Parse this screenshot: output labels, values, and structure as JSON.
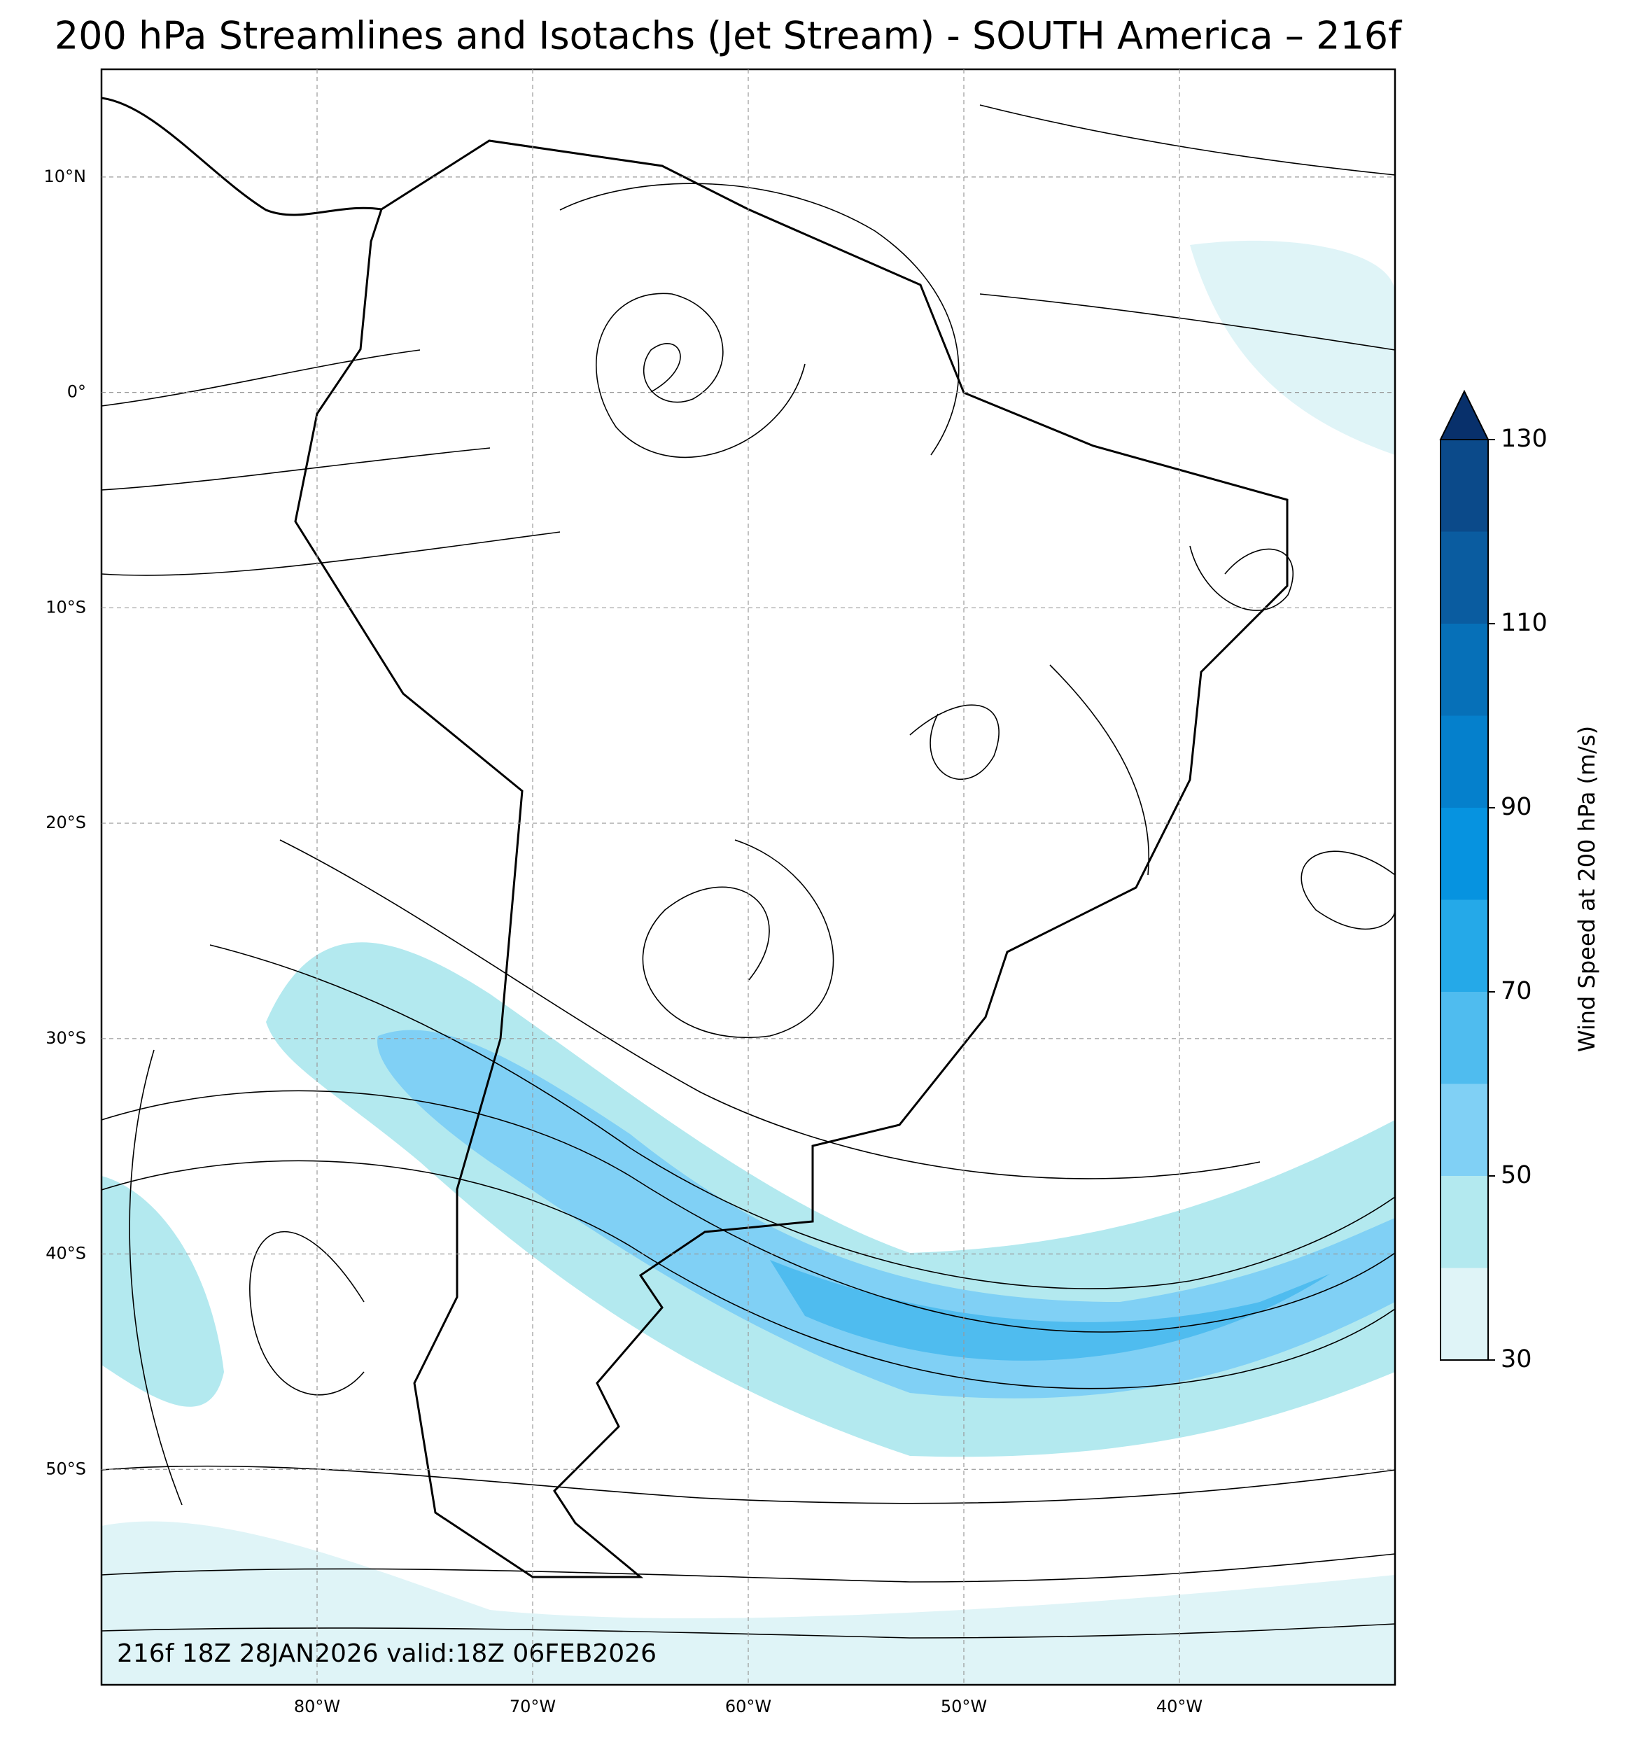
{
  "chart_data": {
    "type": "map",
    "title": "200 hPa Streamlines and Isotachs (Jet Stream) - SOUTH America – 216f",
    "footer": "216f 18Z 28JAN2026 valid:18Z 06FEB2026",
    "xlim": [
      -90,
      -30
    ],
    "ylim": [
      -60,
      15
    ],
    "xticks": [
      {
        "value": -80,
        "label": "80°W"
      },
      {
        "value": -70,
        "label": "70°W"
      },
      {
        "value": -60,
        "label": "60°W"
      },
      {
        "value": -50,
        "label": "50°W"
      },
      {
        "value": -40,
        "label": "40°W"
      }
    ],
    "yticks": [
      {
        "value": 10,
        "label": "10°N"
      },
      {
        "value": 0,
        "label": "0°"
      },
      {
        "value": -10,
        "label": "10°S"
      },
      {
        "value": -20,
        "label": "20°S"
      },
      {
        "value": -30,
        "label": "30°S"
      },
      {
        "value": -40,
        "label": "40°S"
      },
      {
        "value": -50,
        "label": "50°S"
      }
    ],
    "grid": true,
    "colorbar": {
      "label": "Wind Speed at 200 hPa (m/s)",
      "levels": [
        30,
        40,
        50,
        60,
        70,
        80,
        90,
        100,
        110,
        120,
        130
      ],
      "colors": [
        "#dff4f7",
        "#b3e9ef",
        "#80d0f5",
        "#4fbcef",
        "#25a9e8",
        "#0693e0",
        "#0580cc",
        "#0670b8",
        "#0a5ca0",
        "#0b4a8a"
      ],
      "extend_color": "#08306b",
      "ticks": [
        30,
        50,
        70,
        90,
        110,
        130
      ]
    }
  }
}
